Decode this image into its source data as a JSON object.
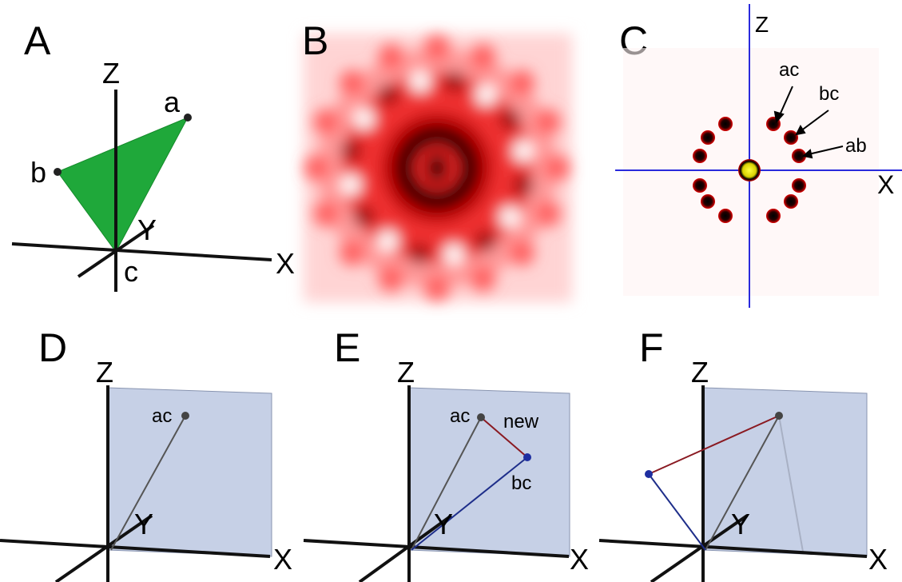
{
  "panels": [
    {
      "letter": "A",
      "labels": [
        "Z",
        "a",
        "b",
        "Y",
        "c",
        "X"
      ]
    },
    {
      "letter": "B"
    },
    {
      "letter": "C",
      "labels": [
        "Z",
        "ac",
        "bc",
        "ab",
        "X"
      ]
    },
    {
      "letter": "D",
      "labels": [
        "Z",
        "ac",
        "Y",
        "X"
      ]
    },
    {
      "letter": "E",
      "labels": [
        "Z",
        "ac",
        "new",
        "bc",
        "Y",
        "X"
      ]
    },
    {
      "letter": "F",
      "labels": [
        "Z",
        "Y",
        "X"
      ]
    }
  ]
}
